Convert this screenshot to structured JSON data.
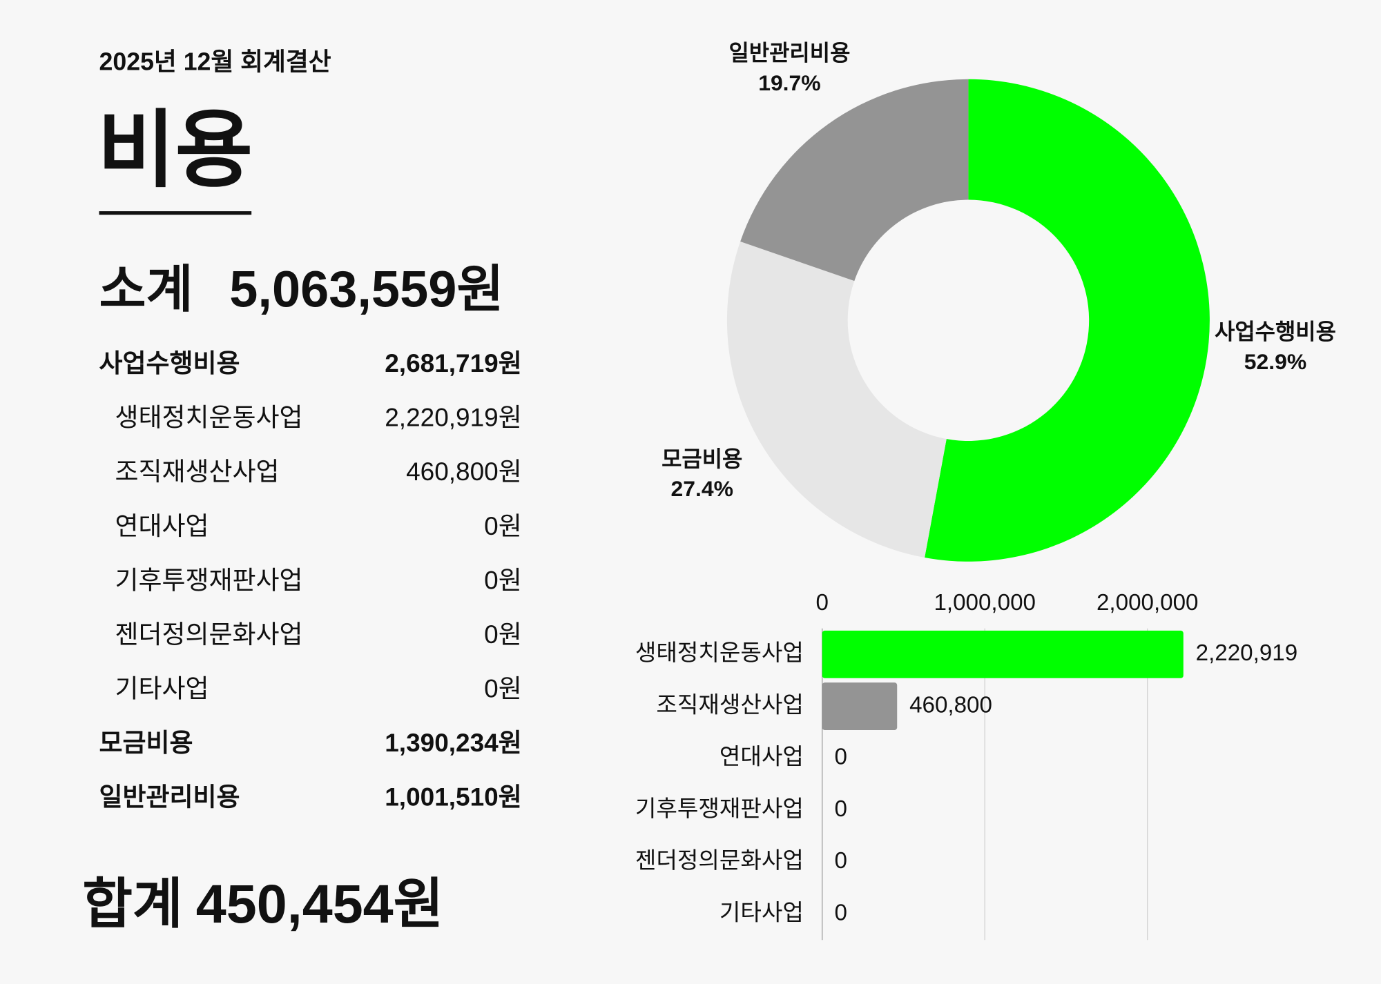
{
  "header": {
    "subtitle": "2025년 12월 회계결산",
    "title": "비용"
  },
  "summary": {
    "label": "소계",
    "amount": "5,063,559원"
  },
  "items": [
    {
      "label": "사업수행비용",
      "amount": "2,681,719원",
      "bold": true
    },
    {
      "label": "생태정치운동사업",
      "amount": "2,220,919원",
      "bold": false
    },
    {
      "label": "조직재생산사업",
      "amount": "460,800원",
      "bold": false
    },
    {
      "label": "연대사업",
      "amount": "0원",
      "bold": false
    },
    {
      "label": "기후투쟁재판사업",
      "amount": "0원",
      "bold": false
    },
    {
      "label": "젠더정의문화사업",
      "amount": "0원",
      "bold": false
    },
    {
      "label": "기타사업",
      "amount": "0원",
      "bold": false
    },
    {
      "label": "모금비용",
      "amount": "1,390,234원",
      "bold": true
    },
    {
      "label": "일반관리비용",
      "amount": "1,001,510원",
      "bold": true
    }
  ],
  "total": {
    "label": "합계",
    "amount": "450,454원"
  },
  "chart_data": [
    {
      "type": "pie",
      "donut": true,
      "categories": [
        "사업수행비용",
        "모금비용",
        "일반관리비용"
      ],
      "values": [
        52.9,
        27.4,
        19.7
      ],
      "value_labels": [
        "52.9%",
        "27.4%",
        "19.7%"
      ],
      "colors": [
        "#00ff00",
        "#e6e6e6",
        "#949494"
      ]
    },
    {
      "type": "hbar",
      "categories": [
        "생태정치운동사업",
        "조직재생산사업",
        "연대사업",
        "기후투쟁재판사업",
        "젠더정의문화사업",
        "기타사업"
      ],
      "values": [
        2220919,
        460800,
        0,
        0,
        0,
        0
      ],
      "value_labels": [
        "2,220,919",
        "460,800",
        "0",
        "0",
        "0",
        "0"
      ],
      "colors": [
        "#00ff00",
        "#949494",
        "#949494",
        "#949494",
        "#949494",
        "#949494"
      ],
      "xlim": [
        0,
        3000000
      ],
      "xticks": [
        0,
        {
          "value": 1000000,
          "label": "1,000,000"
        },
        {
          "value": 2000000,
          "label": "2,000,000"
        }
      ],
      "grid": true
    }
  ]
}
